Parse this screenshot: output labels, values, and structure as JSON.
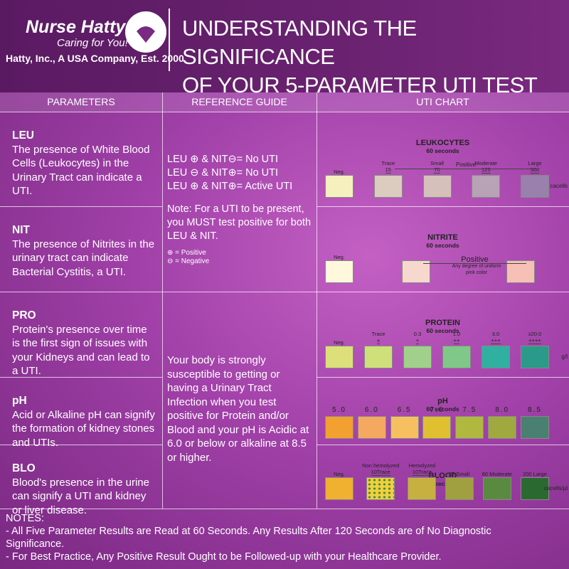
{
  "header": {
    "brand": "Nurse Hatty",
    "tagline": "Caring for You!",
    "company": "Hatty, Inc., A USA Company, Est. 2000",
    "title": [
      "UNDERSTANDING THE SIGNIFICANCE",
      "OF YOUR 5-PARAMETER UTI TEST"
    ]
  },
  "columns": [
    "PARAMETERS",
    "REFERENCE  GUIDE",
    "UTI CHART"
  ],
  "parameters": [
    {
      "name": "LEU",
      "text": "The presence of White Blood Cells (Leukocytes) in the Urinary Tract can indicate a UTI."
    },
    {
      "name": "NIT",
      "text": "The presence of Nitrites in the urinary tract can indicate Bacterial Cystitis, a UTI."
    },
    {
      "name": "PRO",
      "text": "Protein's presence over time is the first sign of issues with your Kidneys and can lead to a UTI."
    },
    {
      "name": "pH",
      "text": "Acid or Alkaline pH can signify the formation of kidney stones and UTIs."
    },
    {
      "name": "BLO",
      "text": "Blood's presence in the urine can signify a UTI and kidney or liver disease."
    }
  ],
  "reference": {
    "rules": [
      "LEU ⊕ & NIT⊖= No UTI",
      "LEU ⊖ & NIT⊕= No UTI",
      "LEU ⊕ & NIT⊕= Active UTI"
    ],
    "note": "Note:  For a UTI to be present, you MUST test positive for both LEU & NIT.",
    "legend": [
      "⊕ = Positive",
      "⊖ = Negative"
    ],
    "body": "Your body is strongly susceptible to getting or having a Urinary Tract Infection when you test positive for Protein and/or Blood and your pH is Acidic at 6.0 or below or alkaline at 8.5 or higher."
  },
  "charts": [
    {
      "title": "LEUKOCYTES",
      "time": "60 seconds",
      "group_label": "Positive",
      "unit": "cacells",
      "swatches": [
        {
          "label": "Neg.",
          "color": "#f6f0bf"
        },
        {
          "label": "Trace",
          "sub": "15",
          "color": "#dccbbf"
        },
        {
          "label": "Small",
          "sub": "70",
          "color": "#d5c0bb"
        },
        {
          "label": "Moderate",
          "sub": "125",
          "color": "#b8a2b5"
        },
        {
          "label": "Large",
          "sub": "500",
          "color": "#9a80ad"
        }
      ]
    },
    {
      "title": "NITRITE",
      "time": "60 seconds",
      "group_label": "Positive",
      "group_note": "Any degree of uniform pink color",
      "swatches": [
        {
          "label": "Neg.",
          "color": "#fff8dc"
        },
        {
          "color": "#f6d8cf"
        },
        {
          "color": "#f7c0b7"
        }
      ]
    },
    {
      "title": "PROTEIN",
      "time": "60 seconds",
      "unit": "g/l",
      "swatches": [
        {
          "label": "Neg.",
          "color": "#dde07a"
        },
        {
          "label": "Trace",
          "sub": "±",
          "color": "#cfe07a"
        },
        {
          "label": "0.3",
          "sub": "+",
          "color": "#a0d08a"
        },
        {
          "label": "1.0",
          "sub": "++",
          "color": "#80c888"
        },
        {
          "label": "3.0",
          "sub": "+++",
          "color": "#30b0a0"
        },
        {
          "label": "≥20.0",
          "sub": "++++",
          "color": "#2a9a8a"
        }
      ]
    },
    {
      "title": "pH",
      "time": "60 seconds",
      "swatches": [
        {
          "label": "5.0",
          "color": "#f2a030"
        },
        {
          "label": "6.0",
          "color": "#f5a860"
        },
        {
          "label": "6.5",
          "color": "#f6c060"
        },
        {
          "label": "7.0",
          "color": "#e0c030"
        },
        {
          "label": "7.5",
          "color": "#b0b840"
        },
        {
          "label": "8.0",
          "color": "#a0a840"
        },
        {
          "label": "8.5",
          "color": "#4a8070"
        }
      ]
    },
    {
      "title": "BLOOD",
      "time": "60 seconds",
      "unit": "cacells/µl",
      "swatches": [
        {
          "label": "Neg.",
          "color": "#f0b030"
        },
        {
          "label": "Non hemolyzed",
          "sub": "10Trace",
          "color": "#f0d040"
        },
        {
          "label": "Hemolyzed",
          "sub": "10Trace",
          "color": "#c8b040"
        },
        {
          "label": "25 Small",
          "color": "#a0a040"
        },
        {
          "label": "80 Moderate",
          "color": "#5a8a40"
        },
        {
          "label": "200 Large",
          "color": "#2a6a30"
        }
      ]
    }
  ],
  "notes": {
    "title": "NOTES:",
    "items": [
      "-  All Five Parameter Results are Read at 60 Seconds. Any Results After 120 Seconds are of No Diagnostic Significance.",
      "-  For Best Practice, Any Positive Result Ought to be Followed-up with your Healthcare Provider."
    ]
  }
}
